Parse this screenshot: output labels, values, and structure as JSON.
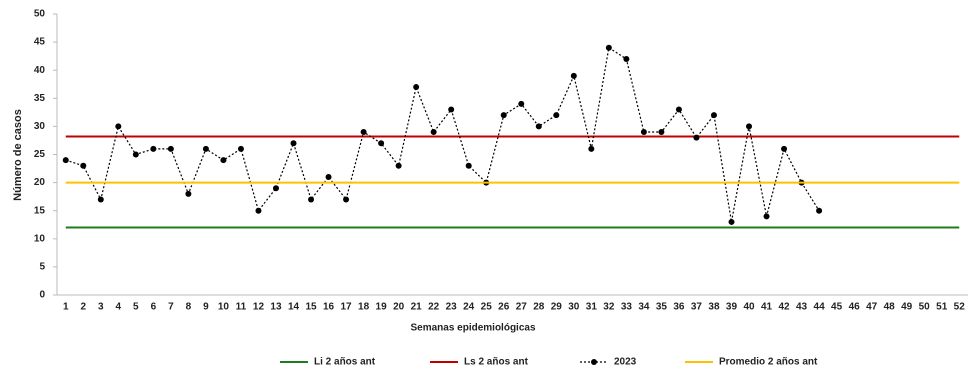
{
  "chart_data": {
    "type": "line",
    "x_label": "Semanas epidemiológicas",
    "y_label": "Número de casos",
    "categories": [
      "1",
      "2",
      "3",
      "4",
      "5",
      "6",
      "7",
      "8",
      "9",
      "10",
      "11",
      "12",
      "13",
      "14",
      "15",
      "16",
      "17",
      "18",
      "19",
      "20",
      "21",
      "22",
      "23",
      "24",
      "25",
      "26",
      "27",
      "28",
      "29",
      "30",
      "31",
      "32",
      "33",
      "34",
      "35",
      "36",
      "37",
      "38",
      "39",
      "40",
      "41",
      "42",
      "43",
      "44",
      "45",
      "46",
      "47",
      "48",
      "49",
      "50",
      "51",
      "52"
    ],
    "series": [
      {
        "name": "Li 2 años ant",
        "color": "#1e7b1e",
        "style": "solid",
        "marker": false,
        "values": [
          12,
          12,
          12,
          12,
          12,
          12,
          12,
          12,
          12,
          12,
          12,
          12,
          12,
          12,
          12,
          12,
          12,
          12,
          12,
          12,
          12,
          12,
          12,
          12,
          12,
          12,
          12,
          12,
          12,
          12,
          12,
          12,
          12,
          12,
          12,
          12,
          12,
          12,
          12,
          12,
          12,
          12,
          12,
          12,
          12,
          12,
          12,
          12,
          12,
          12,
          12,
          12
        ]
      },
      {
        "name": "Ls 2 años ant",
        "color": "#c00000",
        "style": "solid",
        "marker": false,
        "values": [
          28.2,
          28.2,
          28.2,
          28.2,
          28.2,
          28.2,
          28.2,
          28.2,
          28.2,
          28.2,
          28.2,
          28.2,
          28.2,
          28.2,
          28.2,
          28.2,
          28.2,
          28.2,
          28.2,
          28.2,
          28.2,
          28.2,
          28.2,
          28.2,
          28.2,
          28.2,
          28.2,
          28.2,
          28.2,
          28.2,
          28.2,
          28.2,
          28.2,
          28.2,
          28.2,
          28.2,
          28.2,
          28.2,
          28.2,
          28.2,
          28.2,
          28.2,
          28.2,
          28.2,
          28.2,
          28.2,
          28.2,
          28.2,
          28.2,
          28.2,
          28.2,
          28.2
        ]
      },
      {
        "name": "2023",
        "color": "#000000",
        "style": "dotted",
        "marker": true,
        "values": [
          24,
          23,
          17,
          30,
          25,
          26,
          26,
          18,
          26,
          24,
          26,
          15,
          19,
          27,
          17,
          21,
          17,
          29,
          27,
          23,
          37,
          29,
          33,
          23,
          20,
          32,
          34,
          30,
          32,
          39,
          26,
          44,
          42,
          29,
          29,
          33,
          28,
          32,
          13,
          30,
          14,
          26,
          20,
          15,
          null,
          null,
          null,
          null,
          null,
          null,
          null,
          null
        ]
      },
      {
        "name": "Promedio 2 años ant",
        "color": "#ffc000",
        "style": "solid",
        "marker": false,
        "values": [
          20,
          20,
          20,
          20,
          20,
          20,
          20,
          20,
          20,
          20,
          20,
          20,
          20,
          20,
          20,
          20,
          20,
          20,
          20,
          20,
          20,
          20,
          20,
          20,
          20,
          20,
          20,
          20,
          20,
          20,
          20,
          20,
          20,
          20,
          20,
          20,
          20,
          20,
          20,
          20,
          20,
          20,
          20,
          20,
          20,
          20,
          20,
          20,
          20,
          20,
          20,
          20
        ]
      }
    ],
    "ylim": [
      0,
      50
    ],
    "yticks": [
      0,
      5,
      10,
      15,
      20,
      25,
      30,
      35,
      40,
      45,
      50
    ],
    "grid": false,
    "legend": "bottom"
  }
}
